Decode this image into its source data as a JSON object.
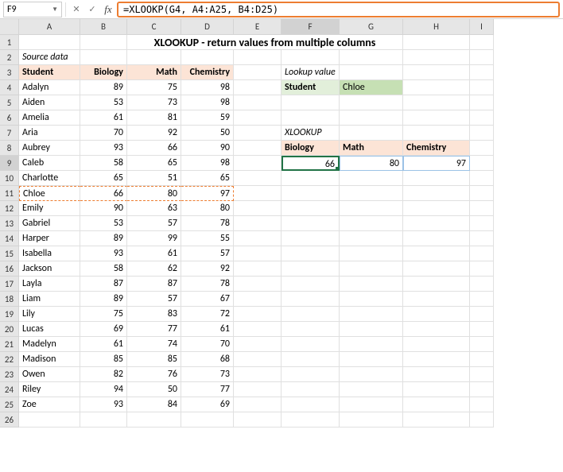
{
  "nameBox": "F9",
  "formula": "=XLOOKP(G4, A4:A25, B4:D25)",
  "colHeaders": [
    "",
    "A",
    "B",
    "C",
    "D",
    "E",
    "F",
    "G",
    "H",
    "I"
  ],
  "title": "XLOOKUP - return values from multiple columns",
  "sourceLabel": "Source data",
  "headers": {
    "student": "Student",
    "biology": "Biology",
    "math": "Math",
    "chemistry": "Chemistry"
  },
  "lookupLabel": "Lookup value",
  "lookupHdr": "Student",
  "lookupVal": "Chloe",
  "xlookupLabel": "XLOOKUP",
  "resultHdr": {
    "biology": "Biology",
    "math": "Math",
    "chemistry": "Chemistry"
  },
  "result": {
    "biology": 66,
    "math": 80,
    "chemistry": 97
  },
  "students": [
    {
      "n": "Adalyn",
      "b": 89,
      "m": 75,
      "c": 98
    },
    {
      "n": "Aiden",
      "b": 53,
      "m": 73,
      "c": 98
    },
    {
      "n": "Amelia",
      "b": 61,
      "m": 81,
      "c": 59
    },
    {
      "n": "Aria",
      "b": 70,
      "m": 92,
      "c": 50
    },
    {
      "n": "Aubrey",
      "b": 93,
      "m": 66,
      "c": 90
    },
    {
      "n": "Caleb",
      "b": 58,
      "m": 65,
      "c": 98
    },
    {
      "n": "Charlotte",
      "b": 65,
      "m": 51,
      "c": 65
    },
    {
      "n": "Chloe",
      "b": 66,
      "m": 80,
      "c": 97
    },
    {
      "n": "Emily",
      "b": 90,
      "m": 63,
      "c": 80
    },
    {
      "n": "Gabriel",
      "b": 53,
      "m": 57,
      "c": 78
    },
    {
      "n": "Harper",
      "b": 89,
      "m": 99,
      "c": 55
    },
    {
      "n": "Isabella",
      "b": 93,
      "m": 61,
      "c": 57
    },
    {
      "n": "Jackson",
      "b": 58,
      "m": 62,
      "c": 92
    },
    {
      "n": "Layla",
      "b": 87,
      "m": 87,
      "c": 78
    },
    {
      "n": "Liam",
      "b": 89,
      "m": 57,
      "c": 67
    },
    {
      "n": "Lily",
      "b": 75,
      "m": 83,
      "c": 72
    },
    {
      "n": "Lucas",
      "b": 69,
      "m": 77,
      "c": 61
    },
    {
      "n": "Madelyn",
      "b": 61,
      "m": 74,
      "c": 70
    },
    {
      "n": "Madison",
      "b": 85,
      "m": 85,
      "c": 68
    },
    {
      "n": "Owen",
      "b": 82,
      "m": 76,
      "c": 73
    },
    {
      "n": "Riley",
      "b": 94,
      "m": 50,
      "c": 77
    },
    {
      "n": "Zoe",
      "b": 93,
      "m": 84,
      "c": 69
    }
  ],
  "highlightRow": 11,
  "colors": {
    "accent": "#ed7d31",
    "selection": "#217346",
    "peach": "#fce4d6",
    "lgreen": "#e2efda",
    "mgreen": "#c6e0b4",
    "spill": "#9bc2e6"
  }
}
